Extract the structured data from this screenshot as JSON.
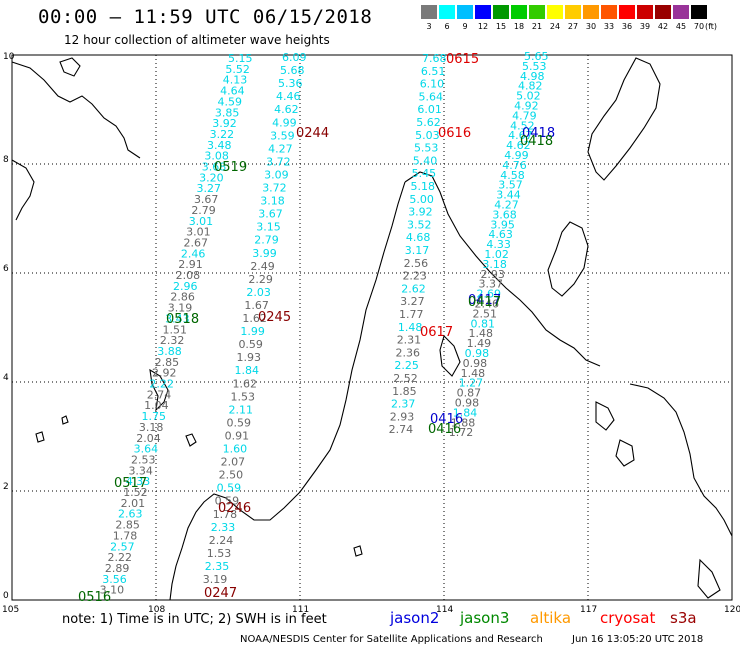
{
  "header": {
    "title": "00:00 – 11:59 UTC 06/15/2018",
    "subtitle": "12 hour collection of altimeter wave heights"
  },
  "colorbar": {
    "unit": "(ft)",
    "labels": [
      "3",
      "6",
      "9",
      "12",
      "15",
      "18",
      "21",
      "24",
      "27",
      "30",
      "33",
      "36",
      "39",
      "42",
      "45",
      "70"
    ],
    "colors": [
      "#7a7a7a",
      "#00ffff",
      "#00bfff",
      "#0000ff",
      "#009900",
      "#00cc00",
      "#33cc00",
      "#ffff00",
      "#ffcc00",
      "#ff9900",
      "#ff5500",
      "#ff0000",
      "#cc0000",
      "#990000",
      "#993399",
      "#000000"
    ]
  },
  "axes": {
    "x_ticks": [
      "105",
      "108",
      "111",
      "114",
      "117",
      "120"
    ],
    "y_ticks": [
      "0",
      "2",
      "4",
      "6",
      "8",
      "10"
    ]
  },
  "passes": [
    {
      "label": "0615",
      "color": "#dd0000"
    },
    {
      "label": "0616",
      "color": "#dd0000"
    },
    {
      "label": "0617",
      "color": "#dd0000"
    },
    {
      "label": "0244",
      "color": "#880000"
    },
    {
      "label": "0245",
      "color": "#880000"
    },
    {
      "label": "0246",
      "color": "#880000"
    },
    {
      "label": "0247",
      "color": "#880000"
    },
    {
      "label": "0519",
      "color": "#006600"
    },
    {
      "label": "0518",
      "color": "#006600"
    },
    {
      "label": "0517",
      "color": "#006600"
    },
    {
      "label": "0516",
      "color": "#006600"
    },
    {
      "label": "0418",
      "color": "#0000cc"
    },
    {
      "label": "0418",
      "color": "#006600"
    },
    {
      "label": "0417",
      "color": "#0000cc"
    },
    {
      "label": "0417",
      "color": "#006600"
    },
    {
      "label": "0416",
      "color": "#0000cc"
    },
    {
      "label": "0416",
      "color": "#006600"
    }
  ],
  "tracks": [
    {
      "name": "t_mid_cyan",
      "color": "#00d8e8",
      "values": [
        "5.15",
        "5.52",
        "4.13",
        "4.64",
        "4.59",
        "3.85",
        "3.92",
        "3.22",
        "3.48",
        "3.08",
        "3.68",
        "3.20",
        "3.27",
        "3.67",
        "2.79",
        "3.01",
        "3.01",
        "2.67",
        "2.46",
        "2.91",
        "2.08",
        "2.96",
        "2.86",
        "3.19",
        "3.43",
        "1.51",
        "2.32",
        "3.88",
        "2.85",
        "2.92",
        "2.22",
        "2.74",
        "1.04",
        "1.75",
        "3.18",
        "2.04",
        "3.64",
        "2.53",
        "3.34",
        "4.33",
        "1.52",
        "2.01",
        "2.63",
        "2.85",
        "1.78",
        "2.57",
        "2.22",
        "2.89",
        "3.56",
        "3.10"
      ]
    },
    {
      "name": "t_right_cyan",
      "color": "#00d8e8",
      "values": [
        "6.09",
        "5.68",
        "5.36",
        "4.46",
        "4.62",
        "4.99",
        "3.59",
        "4.27",
        "3.72",
        "3.09",
        "3.72",
        "3.18",
        "3.67",
        "3.15",
        "2.79",
        "3.99",
        "2.49",
        "2.29",
        "2.03",
        "1.67",
        "1.62",
        "1.99",
        "0.59",
        "1.93",
        "1.84",
        "1.62",
        "1.53",
        "2.11",
        "0.59",
        "0.91",
        "1.60",
        "2.07",
        "2.50",
        "0.59",
        "0.59",
        "1.78",
        "2.33",
        "2.24",
        "1.53",
        "2.35",
        "3.19"
      ]
    },
    {
      "name": "t_sea_cyan",
      "color": "#00d8e8",
      "values": [
        "7.68",
        "6.51",
        "6.10",
        "5.64",
        "6.01",
        "5.62",
        "5.03",
        "5.53",
        "5.40",
        "5.45",
        "5.18",
        "5.00",
        "3.92",
        "3.52",
        "4.68",
        "3.17",
        "2.56",
        "2.23",
        "2.62",
        "3.27",
        "1.77",
        "1.48",
        "2.31",
        "2.36",
        "2.25",
        "2.52",
        "1.85",
        "2.37",
        "2.93",
        "2.74"
      ]
    },
    {
      "name": "t_e_cyan",
      "color": "#00d8e8",
      "values": [
        "5.65",
        "5.53",
        "4.98",
        "4.82",
        "5.02",
        "4.92",
        "4.79",
        "4.52",
        "4.67",
        "4.62",
        "4.99",
        "4.76",
        "4.58",
        "3.57",
        "3.44",
        "4.27",
        "3.68",
        "3.95",
        "4.63",
        "4.33",
        "1.02",
        "3.18",
        "2.93",
        "3.37",
        "2.69",
        "2.46",
        "2.51",
        "0.81",
        "1.48",
        "1.49",
        "0.98",
        "0.98",
        "1.48",
        "1.27",
        "0.87",
        "0.98",
        "1.84",
        "1.88",
        "1.72"
      ]
    }
  ],
  "footer": {
    "note": "note:  1) Time is in UTC;  2) SWH is in feet",
    "satellites": [
      {
        "name": "jason2",
        "color": "#0000dd"
      },
      {
        "name": "jason3",
        "color": "#008800"
      },
      {
        "name": "altika",
        "color": "#ff9900"
      },
      {
        "name": "cryosat",
        "color": "#ff0000"
      },
      {
        "name": "s3a",
        "color": "#990000"
      }
    ],
    "credit": "NOAA/NESDIS Center for Satellite Applications and Research",
    "timestamp": "Jun 16 13:05:20 UTC 2018"
  }
}
